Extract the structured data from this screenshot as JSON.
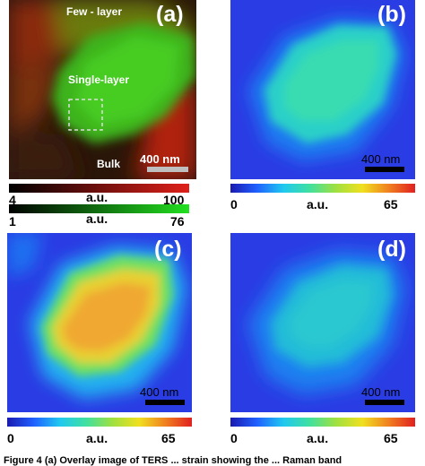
{
  "panel_a": {
    "letter": "(a)",
    "label_few_layer": "Few - layer",
    "label_single_layer": "Single-layer",
    "label_bulk": "Bulk",
    "scale": "400 nm",
    "colorbar_red": {
      "min": "4",
      "unit": "a.u.",
      "max": "100",
      "color": "#e0201a"
    },
    "colorbar_green": {
      "min": "1",
      "unit": "a.u.",
      "max": "76",
      "color": "#22e020"
    }
  },
  "panel_b": {
    "letter": "(b)",
    "scale": "400 nm",
    "colorbar": {
      "min": "0",
      "unit": "a.u.",
      "max": "65"
    }
  },
  "panel_c": {
    "letter": "(c)",
    "scale": "400 nm",
    "colorbar": {
      "min": "0",
      "unit": "a.u.",
      "max": "65"
    }
  },
  "panel_d": {
    "letter": "(d)",
    "scale": "400 nm",
    "colorbar": {
      "min": "0",
      "unit": "a.u.",
      "max": "65"
    }
  },
  "caption": "Figure 4 (a) Overlay image of TERS ... strain showing the ... Raman band"
}
